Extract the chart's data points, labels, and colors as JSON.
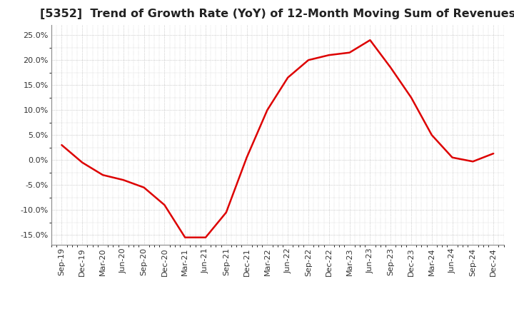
{
  "title": "[5352]  Trend of Growth Rate (YoY) of 12-Month Moving Sum of Revenues",
  "title_fontsize": 11.5,
  "line_color": "#dd0000",
  "background_color": "#ffffff",
  "plot_bg_color": "#ffffff",
  "grid_color": "#aaaaaa",
  "ylim": [
    -0.17,
    0.27
  ],
  "yticks": [
    -0.15,
    -0.1,
    -0.05,
    0.0,
    0.05,
    0.1,
    0.15,
    0.2,
    0.25
  ],
  "x_labels": [
    "Sep-19",
    "Dec-19",
    "Mar-20",
    "Jun-20",
    "Sep-20",
    "Dec-20",
    "Mar-21",
    "Jun-21",
    "Sep-21",
    "Dec-21",
    "Mar-22",
    "Jun-22",
    "Sep-22",
    "Dec-22",
    "Mar-23",
    "Jun-23",
    "Sep-23",
    "Dec-23",
    "Mar-24",
    "Jun-24",
    "Sep-24",
    "Dec-24"
  ],
  "values": [
    0.03,
    -0.005,
    -0.03,
    -0.04,
    -0.055,
    -0.09,
    -0.155,
    -0.155,
    -0.105,
    0.005,
    0.1,
    0.165,
    0.2,
    0.21,
    0.215,
    0.24,
    0.185,
    0.125,
    0.05,
    0.005,
    -0.003,
    0.013
  ]
}
